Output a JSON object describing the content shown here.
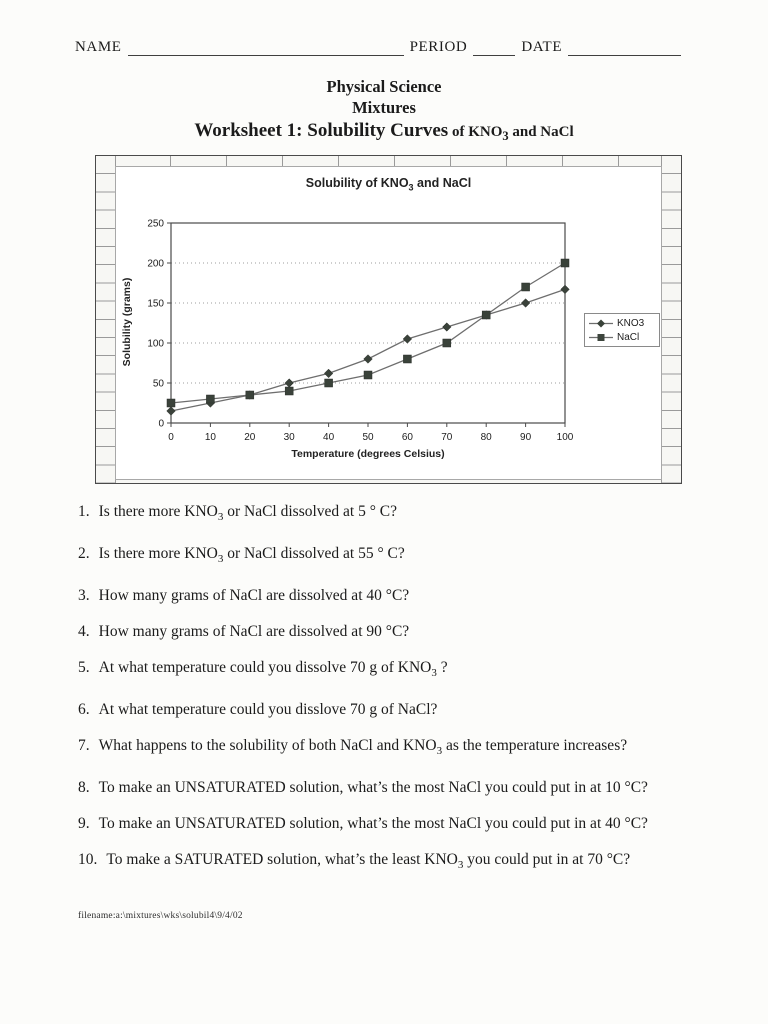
{
  "header": {
    "name_label": "NAME",
    "period_label": "PERIOD",
    "date_label": "DATE"
  },
  "title_block": {
    "line1": "Physical Science",
    "line2": "Mixtures",
    "line3_main": "Worksheet 1: Solubility Curves",
    "line3_sub": " of KNO3 and NaCl"
  },
  "chart_data": {
    "type": "line",
    "title": "Solubility of KNO3 and NaCl",
    "xlabel": "Temperature (degrees Celsius)",
    "ylabel": "Solubility (grams)",
    "x": [
      0,
      10,
      20,
      30,
      40,
      50,
      60,
      70,
      80,
      90,
      100
    ],
    "series": [
      {
        "name": "KNO3",
        "marker": "diamond",
        "values": [
          15,
          25,
          35,
          50,
          62,
          80,
          105,
          120,
          135,
          150,
          167
        ]
      },
      {
        "name": "NaCl",
        "marker": "square",
        "values": [
          25,
          30,
          35,
          40,
          50,
          60,
          80,
          100,
          135,
          170,
          200
        ]
      }
    ],
    "xlim": [
      0,
      100
    ],
    "ylim": [
      0,
      250
    ],
    "xticks": [
      0,
      10,
      20,
      30,
      40,
      50,
      60,
      70,
      80,
      90,
      100
    ],
    "yticks": [
      0,
      50,
      100,
      150,
      200,
      250
    ],
    "grid": "horizontal-dotted",
    "legend_position": "right",
    "line_color": "#6e6e6e",
    "marker_color": "#3a423a"
  },
  "questions": [
    {
      "num": "1.",
      "text": "Is there more KNO3 or NaCl dissolved at 5 ° C?"
    },
    {
      "num": "2.",
      "text": "Is there more KNO3 or NaCl dissolved at 55 ° C?"
    },
    {
      "num": "3.",
      "text": "How many grams of NaCl are dissolved at 40 °C?"
    },
    {
      "num": "4.",
      "text": "How many grams of NaCl are dissolved at 90 °C?"
    },
    {
      "num": "5.",
      "text": "At what temperature could you dissolve 70 g of KNO3 ?"
    },
    {
      "num": "6.",
      "text": "At what temperature could you disslove 70 g of NaCl?"
    },
    {
      "num": "7.",
      "text": "What happens to the solubility of both NaCl and KNO3  as the temperature increases?"
    },
    {
      "num": "8.",
      "text": "To make an UNSATURATED solution, what’s the most NaCl  you  could put in at 10 °C?"
    },
    {
      "num": "9.",
      "text": "To make an UNSATURATED solution, what’s the most NaCl  you  could put in at 40 °C?"
    },
    {
      "num": "10.",
      "text": "To make a SATURATED solution, what’s the least KNO3  you  could put in at 70 °C?"
    }
  ],
  "footer": {
    "filename": "filename:a:\\mixtures\\wks\\solubil4\\9/4/02"
  }
}
